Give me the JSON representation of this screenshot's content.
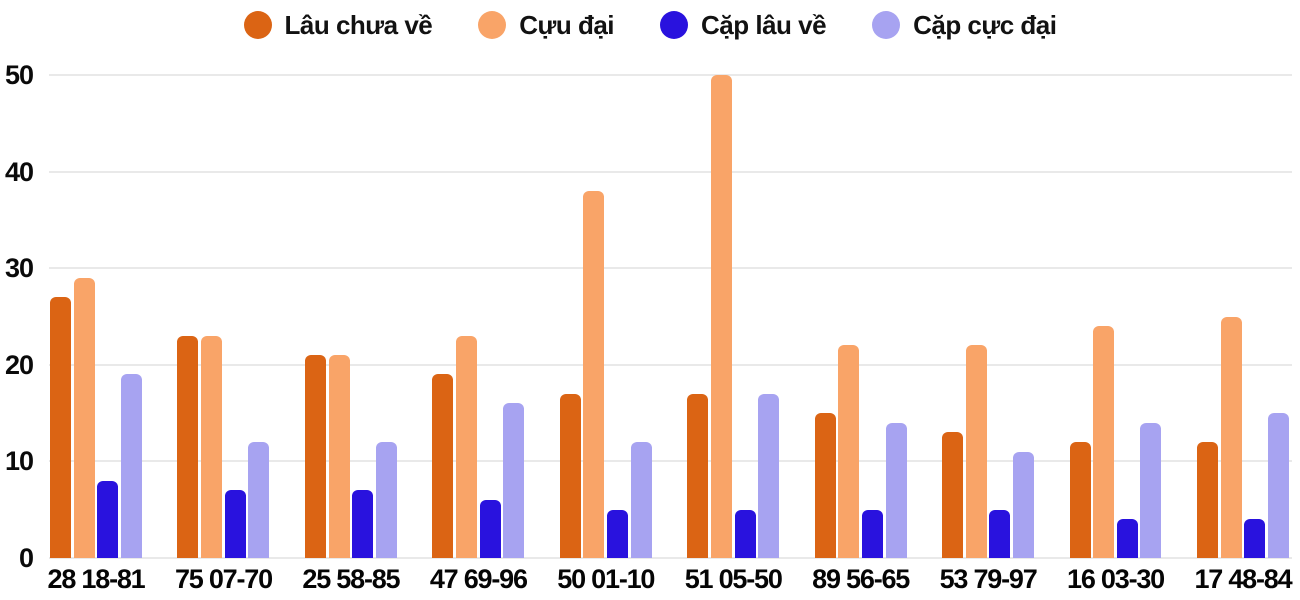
{
  "legend": {
    "items": [
      {
        "label": "Lâu chưa về",
        "color": "#DB6414"
      },
      {
        "label": "Cựu đại",
        "color": "#F9A468"
      },
      {
        "label": "Cặp lâu về",
        "color": "#2912DE"
      },
      {
        "label": "Cặp cực đại",
        "color": "#A7A3F1"
      }
    ]
  },
  "chart_data": {
    "type": "bar",
    "title": "",
    "xlabel": "",
    "ylabel": "",
    "grid": true,
    "legend_position": "top",
    "ylim": [
      0,
      50
    ],
    "yticks": [
      0,
      10,
      20,
      30,
      40,
      50
    ],
    "categories": [
      "28 18-81",
      "75 07-70",
      "25 58-85",
      "47 69-96",
      "50 01-10",
      "51 05-50",
      "89 56-65",
      "53 79-97",
      "16 03-30",
      "17 48-84"
    ],
    "series": [
      {
        "name": "Lâu chưa về",
        "color": "#DB6414",
        "values": [
          27,
          23,
          21,
          19,
          17,
          17,
          15,
          13,
          12,
          12
        ]
      },
      {
        "name": "Cựu đại",
        "color": "#F9A468",
        "values": [
          29,
          23,
          21,
          23,
          38,
          50,
          22,
          22,
          24,
          25
        ]
      },
      {
        "name": "Cặp lâu về",
        "color": "#2912DE",
        "values": [
          8,
          7,
          7,
          6,
          5,
          5,
          5,
          5,
          4,
          4
        ]
      },
      {
        "name": "Cặp cực đại",
        "color": "#A7A3F1",
        "values": [
          19,
          12,
          12,
          16,
          12,
          17,
          14,
          11,
          14,
          15
        ]
      }
    ]
  },
  "colors": {
    "background": "#FFFFFF",
    "gridline": "#E9E9E9",
    "text": "#0a0a0a"
  }
}
